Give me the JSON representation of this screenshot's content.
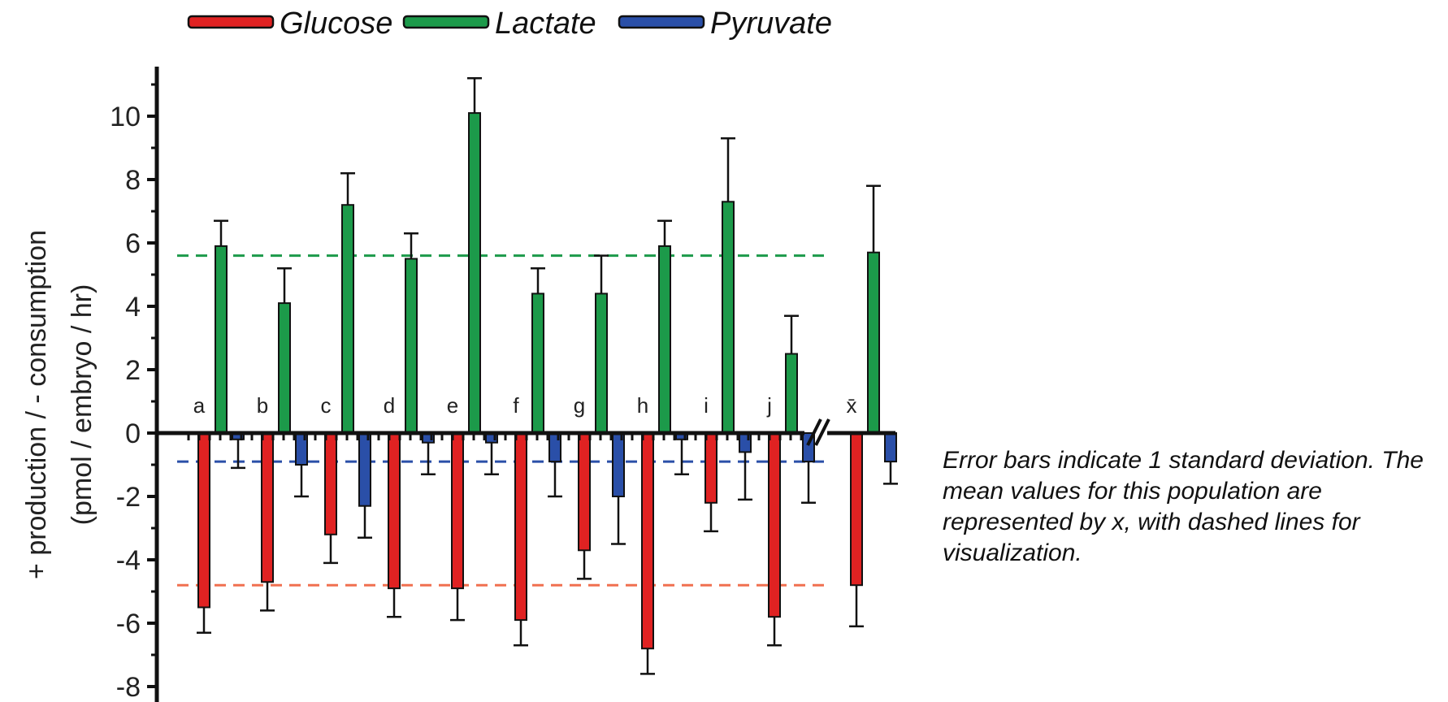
{
  "chart_data": {
    "type": "bar",
    "title": "",
    "ylabel_line1": "+ production / - consumption",
    "ylabel_line2": "(pmol / embryo / hr)",
    "ylim": [
      -8.3,
      11.5
    ],
    "yticks": [
      "10",
      "8",
      "6",
      "4",
      "2",
      "0",
      "-2",
      "-4",
      "-6",
      "-8"
    ],
    "ytick_values": [
      10,
      8,
      6,
      4,
      2,
      0,
      -2,
      -4,
      -6,
      -8
    ],
    "categories": [
      "a",
      "b",
      "c",
      "d",
      "e",
      "f",
      "g",
      "h",
      "i",
      "j",
      "x̄"
    ],
    "axis_break_symbol": "//",
    "legend_position": "top",
    "series": [
      {
        "name": "Glucose",
        "color": "#e02222",
        "values": [
          -5.5,
          -4.7,
          -3.2,
          -4.9,
          -4.9,
          -5.9,
          -3.7,
          -6.8,
          -2.2,
          -5.8,
          -4.8
        ],
        "errors": [
          0.8,
          0.9,
          0.9,
          0.9,
          1.0,
          0.8,
          0.9,
          0.8,
          0.9,
          0.9,
          1.3
        ]
      },
      {
        "name": "Lactate",
        "color": "#1c9a4a",
        "values": [
          5.9,
          4.1,
          7.2,
          5.5,
          10.1,
          4.4,
          4.4,
          5.9,
          7.3,
          2.5,
          5.7
        ],
        "errors": [
          0.8,
          1.1,
          1.0,
          0.8,
          1.1,
          0.8,
          1.2,
          0.8,
          2.0,
          1.2,
          2.1
        ]
      },
      {
        "name": "Pyruvate",
        "color": "#2a4fa8",
        "values": [
          -0.2,
          -1.0,
          -2.3,
          -0.3,
          -0.3,
          -0.9,
          -2.0,
          -0.2,
          -0.6,
          -0.9,
          -0.9
        ],
        "errors": [
          0.9,
          1.0,
          1.0,
          1.0,
          1.0,
          1.1,
          1.5,
          1.1,
          1.5,
          1.3,
          0.7
        ]
      }
    ],
    "mean_lines": [
      {
        "series": "Lactate",
        "value": 5.6,
        "color": "#1c9a4a"
      },
      {
        "series": "Pyruvate",
        "value": -0.9,
        "color": "#2a4fa8"
      },
      {
        "series": "Glucose",
        "value": -4.8,
        "color": "#f07050"
      }
    ]
  },
  "annotation": "Error bars indicate 1 standard deviation. The mean values for this population are represented by x, with dashed lines for visualization."
}
